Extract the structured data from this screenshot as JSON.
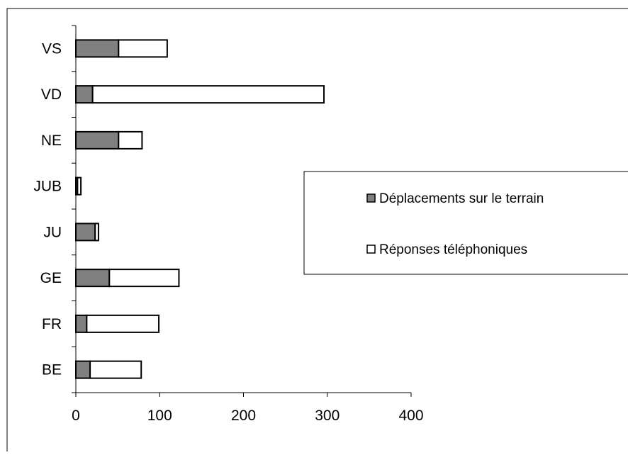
{
  "chart_data": {
    "type": "bar",
    "orientation": "horizontal",
    "stacked": true,
    "categories": [
      "VS",
      "VD",
      "NE",
      "JUB",
      "JU",
      "GE",
      "FR",
      "BE"
    ],
    "series": [
      {
        "name": "Déplacements sur le terrain",
        "color": "#808080",
        "values": [
          51,
          20,
          51,
          2,
          23,
          40,
          13,
          17
        ]
      },
      {
        "name": "Réponses téléphoniques",
        "color": "#ffffff",
        "values": [
          58,
          276,
          28,
          4,
          4,
          83,
          86,
          61
        ]
      }
    ],
    "xlim": [
      0,
      400
    ],
    "xticks": [
      0,
      100,
      200,
      300,
      400
    ],
    "title": "",
    "xlabel": "",
    "ylabel": "",
    "grid": false,
    "legend_position": "right"
  }
}
